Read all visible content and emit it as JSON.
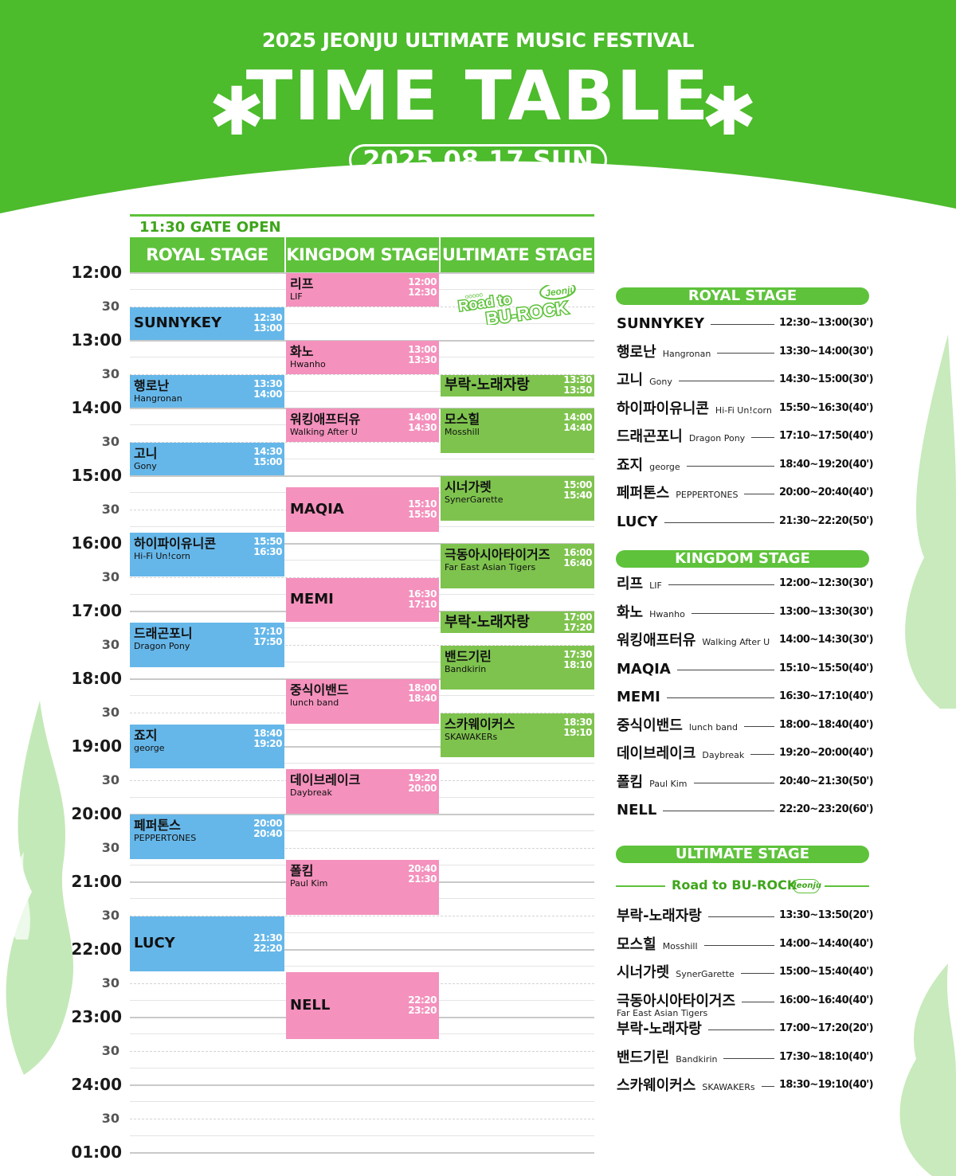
{
  "header": {
    "festival": "2025 JEONJU ULTIMATE MUSIC FESTIVAL",
    "title": "TIME TABLE",
    "asterisk": "✱",
    "date": "2025.08.17 SUN",
    "color_bg": "#4cbb2c"
  },
  "gate_open": "11:30 GATE OPEN",
  "stages": {
    "royal": "ROYAL STAGE",
    "kingdom": "KINGDOM STAGE",
    "ultimate": "ULTIMATE STAGE"
  },
  "colors": {
    "royal": "#66b7e9",
    "kingdom": "#f491bd",
    "ultimate": "#7ec34e",
    "accent": "#5ec23b"
  },
  "time_labels": [
    "12:00",
    "30",
    "13:00",
    "30",
    "14:00",
    "30",
    "15:00",
    "30",
    "16:00",
    "30",
    "17:00",
    "30",
    "18:00",
    "30",
    "19:00",
    "30",
    "20:00",
    "30",
    "21:00",
    "30",
    "22:00",
    "30",
    "23:00",
    "30",
    "24:00",
    "30",
    "01:00"
  ],
  "road_logo": {
    "line1": "Road to",
    "line2": "BU-ROCK",
    "badge": "Jeonju",
    "dots": "ooooo"
  },
  "schedule": {
    "royal": [
      {
        "name": "SUNNYKEY",
        "sub": "",
        "start": "12:30",
        "end": "13:00"
      },
      {
        "name": "행로난",
        "sub": "Hangronan",
        "start": "13:30",
        "end": "14:00"
      },
      {
        "name": "고니",
        "sub": "Gony",
        "start": "14:30",
        "end": "15:00"
      },
      {
        "name": "하이파이유니콘",
        "sub": "Hi-Fi Un!corn",
        "start": "15:50",
        "end": "16:30"
      },
      {
        "name": "드래곤포니",
        "sub": "Dragon Pony",
        "start": "17:10",
        "end": "17:50"
      },
      {
        "name": "죠지",
        "sub": "george",
        "start": "18:40",
        "end": "19:20"
      },
      {
        "name": "페퍼톤스",
        "sub": "PEPPERTONES",
        "start": "20:00",
        "end": "20:40"
      },
      {
        "name": "LUCY",
        "sub": "",
        "start": "21:30",
        "end": "22:20"
      }
    ],
    "kingdom": [
      {
        "name": "리프",
        "sub": "LIF",
        "start": "12:00",
        "end": "12:30"
      },
      {
        "name": "화노",
        "sub": "Hwanho",
        "start": "13:00",
        "end": "13:30"
      },
      {
        "name": "워킹애프터유",
        "sub": "Walking After U",
        "start": "14:00",
        "end": "14:30"
      },
      {
        "name": "MAQIA",
        "sub": "",
        "start": "15:10",
        "end": "15:50"
      },
      {
        "name": "MEMI",
        "sub": "",
        "start": "16:30",
        "end": "17:10"
      },
      {
        "name": "중식이밴드",
        "sub": "lunch band",
        "start": "18:00",
        "end": "18:40"
      },
      {
        "name": "데이브레이크",
        "sub": "Daybreak",
        "start": "19:20",
        "end": "20:00"
      },
      {
        "name": "폴킴",
        "sub": "Paul Kim",
        "start": "20:40",
        "end": "21:30"
      },
      {
        "name": "NELL",
        "sub": "",
        "start": "22:20",
        "end": "23:20"
      }
    ],
    "ultimate": [
      {
        "name": "부락-노래자랑",
        "sub": "",
        "start": "13:30",
        "end": "13:50"
      },
      {
        "name": "모스힐",
        "sub": "Mosshill",
        "start": "14:00",
        "end": "14:40"
      },
      {
        "name": "시너가렛",
        "sub": "SynerGarette",
        "start": "15:00",
        "end": "15:40"
      },
      {
        "name": "극동아시아타이거즈",
        "sub": "Far East Asian Tigers",
        "start": "16:00",
        "end": "16:40"
      },
      {
        "name": "부락-노래자랑",
        "sub": "",
        "start": "17:00",
        "end": "17:20"
      },
      {
        "name": "밴드기린",
        "sub": "Bandkirin",
        "start": "17:30",
        "end": "18:10"
      },
      {
        "name": "스카웨이커스",
        "sub": "SKAWAKERs",
        "start": "18:30",
        "end": "19:10"
      }
    ]
  },
  "sidebar": {
    "royal": [
      {
        "name": "SUNNYKEY",
        "sub": "",
        "time": "12:30~13:00(30')"
      },
      {
        "name": "행로난",
        "sub": "Hangronan",
        "time": "13:30~14:00(30')"
      },
      {
        "name": "고니",
        "sub": "Gony",
        "time": "14:30~15:00(30')"
      },
      {
        "name": "하이파이유니콘",
        "sub": "Hi-Fi Un!corn",
        "time": "15:50~16:30(40')"
      },
      {
        "name": "드래곤포니",
        "sub": "Dragon Pony",
        "time": "17:10~17:50(40')"
      },
      {
        "name": "죠지",
        "sub": "george",
        "time": "18:40~19:20(40')"
      },
      {
        "name": "페퍼톤스",
        "sub": "PEPPERTONES",
        "time": "20:00~20:40(40')"
      },
      {
        "name": "LUCY",
        "sub": "",
        "time": "21:30~22:20(50')"
      }
    ],
    "kingdom": [
      {
        "name": "리프",
        "sub": "LIF",
        "time": "12:00~12:30(30')"
      },
      {
        "name": "화노",
        "sub": "Hwanho",
        "time": "13:00~13:30(30')"
      },
      {
        "name": "워킹애프터유",
        "sub": "Walking After U",
        "time": "14:00~14:30(30')"
      },
      {
        "name": "MAQIA",
        "sub": "",
        "time": "15:10~15:50(40')"
      },
      {
        "name": "MEMI",
        "sub": "",
        "time": "16:30~17:10(40')"
      },
      {
        "name": "중식이밴드",
        "sub": "lunch band",
        "time": "18:00~18:40(40')"
      },
      {
        "name": "데이브레이크",
        "sub": "Daybreak",
        "time": "19:20~20:00(40')"
      },
      {
        "name": "폴킴",
        "sub": "Paul Kim",
        "time": "20:40~21:30(50')"
      },
      {
        "name": "NELL",
        "sub": "",
        "time": "22:20~23:20(60')"
      }
    ],
    "road_text": "Road to BU-ROCK",
    "road_badge": "Jeonju",
    "ultimate": [
      {
        "name": "부락-노래자랑",
        "sub": "",
        "sub2": "",
        "time": "13:30~13:50(20')"
      },
      {
        "name": "모스힐",
        "sub": "Mosshill",
        "sub2": "",
        "time": "14:00~14:40(40')"
      },
      {
        "name": "시너가렛",
        "sub": "SynerGarette",
        "sub2": "",
        "time": "15:00~15:40(40')"
      },
      {
        "name": "극동아시아타이거즈",
        "sub": "",
        "sub2": "Far East Asian Tigers",
        "time": "16:00~16:40(40')"
      },
      {
        "name": "부락-노래자랑",
        "sub": "",
        "sub2": "",
        "time": "17:00~17:20(20')"
      },
      {
        "name": "밴드기린",
        "sub": "Bandkirin",
        "sub2": "",
        "time": "17:30~18:10(40')"
      },
      {
        "name": "스카웨이커스",
        "sub": "SKAWAKERs",
        "sub2": "",
        "time": "18:30~19:10(40')"
      }
    ]
  }
}
